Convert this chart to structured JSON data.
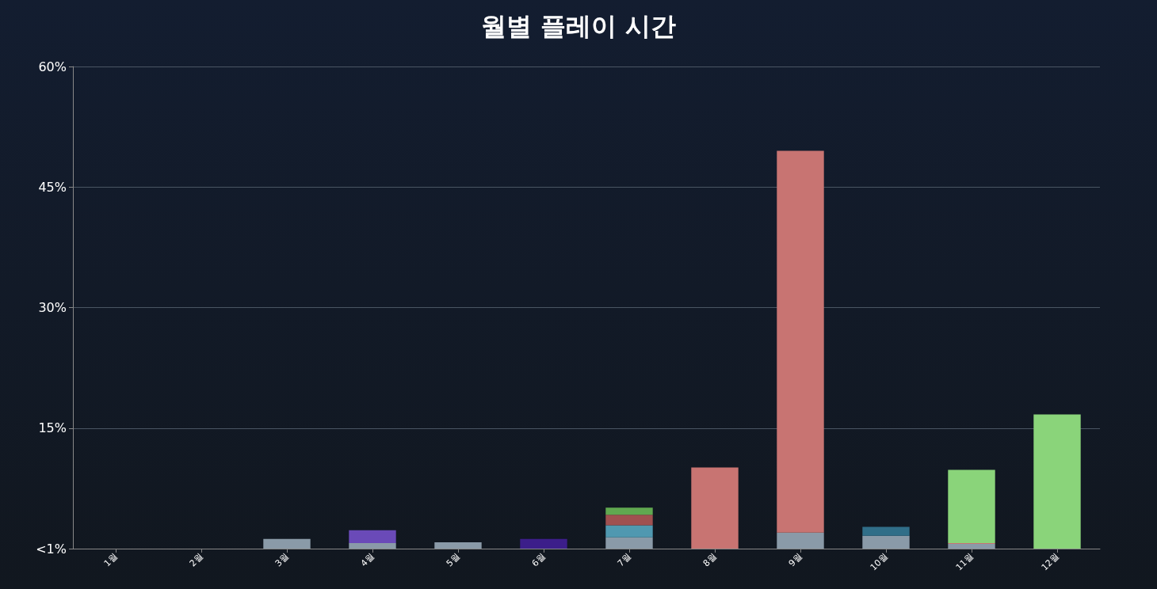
{
  "chart_data": {
    "type": "bar",
    "title": "월별 플레이 시간",
    "stacked": true,
    "grid": "y",
    "categories": [
      "1월",
      "2월",
      "3월",
      "4월",
      "5월",
      "6월",
      "7월",
      "8월",
      "9월",
      "10월",
      "11월",
      "12월"
    ],
    "ylim": [
      0,
      60
    ],
    "yticks": [
      {
        "value": 0,
        "label": "<1%"
      },
      {
        "value": 15,
        "label": "15%"
      },
      {
        "value": 30,
        "label": "30%"
      },
      {
        "value": 45,
        "label": "45%"
      },
      {
        "value": 60,
        "label": "60%"
      }
    ],
    "series": [
      {
        "color": "#8a9aa8",
        "values": [
          null,
          null,
          1.2,
          0.7,
          0.8,
          null,
          1.4,
          null,
          2.0,
          1.6,
          0.6,
          null
        ]
      },
      {
        "color": "#6a4ab8",
        "values": [
          null,
          null,
          null,
          1.6,
          null,
          null,
          null,
          null,
          null,
          null,
          null,
          null
        ]
      },
      {
        "color": "#3c1e8a",
        "values": [
          null,
          null,
          null,
          null,
          null,
          1.2,
          null,
          null,
          null,
          null,
          null,
          null
        ]
      },
      {
        "color": "#5098b0",
        "values": [
          null,
          null,
          null,
          null,
          null,
          null,
          1.5,
          null,
          null,
          null,
          null,
          null
        ]
      },
      {
        "color": "#a05050",
        "values": [
          null,
          null,
          null,
          null,
          null,
          null,
          1.3,
          null,
          null,
          null,
          null,
          null
        ]
      },
      {
        "color": "#60a850",
        "values": [
          null,
          null,
          null,
          null,
          null,
          null,
          0.9,
          null,
          null,
          null,
          null,
          null
        ]
      },
      {
        "color": "#c87472",
        "values": [
          null,
          null,
          null,
          null,
          null,
          null,
          null,
          10.1,
          47.5,
          null,
          0.1,
          null
        ]
      },
      {
        "color": "#306e88",
        "values": [
          null,
          null,
          null,
          null,
          null,
          null,
          null,
          null,
          null,
          1.1,
          null,
          null
        ]
      },
      {
        "color": "#8ad47a",
        "values": [
          null,
          null,
          null,
          null,
          null,
          null,
          null,
          null,
          null,
          null,
          9.1,
          16.7
        ]
      }
    ]
  }
}
